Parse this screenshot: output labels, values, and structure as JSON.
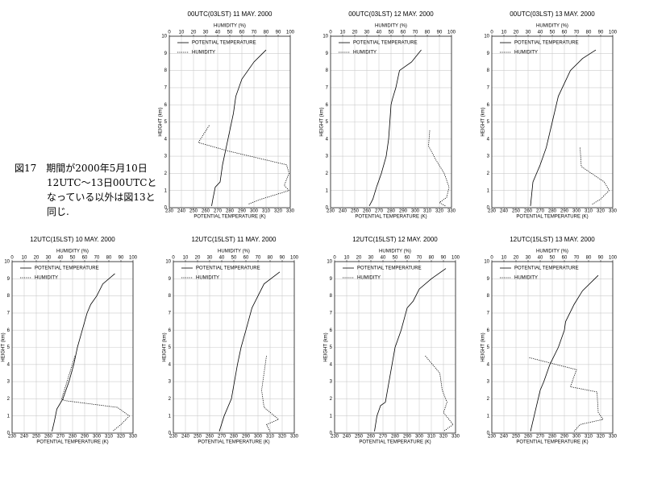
{
  "caption": [
    "図17　期間が2000年5月10日",
    "12UTC～13日00UTCと",
    "なっている以外は図13と",
    "同じ."
  ],
  "chart_data": [
    {
      "type": "line",
      "title": "00UTC(03LST) 11 MAY. 2000",
      "x_label": "POTENTIAL TEMPERATURE (K)",
      "x2_label": "HUMIDITY (%)",
      "y_label": "HEIGHT (km)",
      "xlim": [
        230,
        330
      ],
      "xticks": [
        230,
        240,
        250,
        260,
        270,
        280,
        290,
        300,
        310,
        320,
        330
      ],
      "x2lim": [
        0,
        100
      ],
      "x2ticks": [
        0,
        10,
        20,
        30,
        40,
        50,
        60,
        70,
        80,
        90,
        100
      ],
      "ylim": [
        0,
        10
      ],
      "yticks": [
        0,
        1,
        2,
        3,
        4,
        5,
        6,
        7,
        8,
        9,
        10
      ],
      "grid": true,
      "series": [
        {
          "name": "POTENTIAL TEMPERATURE",
          "color": "#000000",
          "dashed": false,
          "x": [
            265,
            266,
            268,
            272,
            274,
            277,
            280,
            283,
            285,
            290,
            300,
            310
          ],
          "y": [
            0.1,
            0.5,
            1.2,
            1.5,
            2.5,
            3.5,
            4.5,
            5.5,
            6.5,
            7.5,
            8.5,
            9.2
          ]
        },
        {
          "name": "HUMIDITY",
          "color": "#000000",
          "dashed": true,
          "axis": "x2",
          "x": [
            33,
            24,
            49,
            97,
            99,
            95,
            99,
            76,
            65
          ],
          "y": [
            4.8,
            3.8,
            3.3,
            2.5,
            2.0,
            1.3,
            1.0,
            0.5,
            0.2
          ]
        }
      ]
    },
    {
      "type": "line",
      "title": "00UTC(03LST) 12 MAY. 2000",
      "x_label": "POTENTIAL TEMPERATURE (K)",
      "x2_label": "HUMIDITY (%)",
      "y_label": "HEIGHT (km)",
      "xlim": [
        230,
        330
      ],
      "xticks": [
        230,
        240,
        250,
        260,
        270,
        280,
        290,
        300,
        310,
        320,
        330
      ],
      "x2lim": [
        0,
        100
      ],
      "x2ticks": [
        0,
        10,
        20,
        30,
        40,
        50,
        60,
        70,
        80,
        90,
        100
      ],
      "ylim": [
        0,
        10
      ],
      "yticks": [
        0,
        1,
        2,
        3,
        4,
        5,
        6,
        7,
        8,
        9,
        10
      ],
      "grid": true,
      "series": [
        {
          "name": "POTENTIAL TEMPERATURE",
          "color": "#000000",
          "dashed": false,
          "x": [
            262,
            265,
            268,
            272,
            276,
            278,
            279,
            280,
            281,
            284,
            287,
            297,
            305
          ],
          "y": [
            0.1,
            0.5,
            1.2,
            2,
            3,
            4,
            5,
            6,
            6.3,
            7,
            8,
            8.5,
            9.2
          ]
        },
        {
          "name": "HUMIDITY",
          "color": "#000000",
          "dashed": true,
          "axis": "x2",
          "x": [
            82,
            81,
            87,
            94,
            98,
            96,
            90,
            95
          ],
          "y": [
            4.5,
            3.6,
            2.8,
            2,
            1.2,
            0.6,
            0.3,
            0.1
          ]
        }
      ]
    },
    {
      "type": "line",
      "title": "00UTC(03LST) 13 MAY. 2000",
      "x_label": "POTENTIAL TEMPERATURE (K)",
      "x2_label": "HUMIDITY (%)",
      "y_label": "HEIGHT (km)",
      "xlim": [
        230,
        330
      ],
      "xticks": [
        230,
        240,
        250,
        260,
        270,
        280,
        290,
        300,
        310,
        320,
        330
      ],
      "x2lim": [
        0,
        100
      ],
      "x2ticks": [
        0,
        10,
        20,
        30,
        40,
        50,
        60,
        70,
        80,
        90,
        100
      ],
      "ylim": [
        0,
        10
      ],
      "yticks": [
        0,
        1,
        2,
        3,
        4,
        5,
        6,
        7,
        8,
        9,
        10
      ],
      "grid": true,
      "series": [
        {
          "name": "POTENTIAL TEMPERATURE",
          "color": "#000000",
          "dashed": false,
          "x": [
            262,
            264,
            270,
            275,
            280,
            285,
            295,
            305,
            316
          ],
          "y": [
            0.1,
            1.5,
            2.5,
            3.5,
            5,
            6.5,
            8,
            8.7,
            9.2
          ]
        },
        {
          "name": "HUMIDITY",
          "color": "#000000",
          "dashed": true,
          "axis": "x2",
          "x": [
            73,
            74,
            93,
            97,
            90,
            83
          ],
          "y": [
            3.5,
            2.4,
            1.5,
            1.0,
            0.5,
            0.2
          ]
        }
      ]
    },
    {
      "type": "line",
      "title": "12UTC(15LST) 10 MAY. 2000",
      "x_label": "POTENTIAL TEMPERATURE (K)",
      "x2_label": "HUMIDITY (%)",
      "y_label": "HEIGHT (km)",
      "xlim": [
        230,
        330
      ],
      "xticks": [
        230,
        240,
        250,
        260,
        270,
        280,
        290,
        300,
        310,
        320,
        330
      ],
      "x2lim": [
        0,
        100
      ],
      "x2ticks": [
        0,
        10,
        20,
        30,
        40,
        50,
        60,
        70,
        80,
        90,
        100
      ],
      "ylim": [
        0,
        10
      ],
      "yticks": [
        0,
        1,
        2,
        3,
        4,
        5,
        6,
        7,
        8,
        9,
        10
      ],
      "grid": true,
      "series": [
        {
          "name": "POTENTIAL TEMPERATURE",
          "color": "#000000",
          "dashed": false,
          "x": [
            263,
            265,
            267,
            272,
            277,
            281,
            284,
            288,
            292,
            295,
            300,
            305,
            315
          ],
          "y": [
            0.1,
            0.7,
            1.4,
            2,
            3,
            4,
            5,
            6,
            7,
            7.5,
            8,
            8.7,
            9.3
          ]
        },
        {
          "name": "HUMIDITY",
          "color": "#000000",
          "dashed": true,
          "axis": "x2",
          "x": [
            52,
            41,
            43,
            87,
            97,
            90,
            83
          ],
          "y": [
            4.5,
            2,
            1.9,
            1.5,
            1,
            0.5,
            0.1
          ]
        }
      ]
    },
    {
      "type": "line",
      "title": "12UTC(15LST) 11 MAY. 2000",
      "x_label": "POTENTIAL TEMPERATURE (K)",
      "x2_label": "HUMIDITY (%)",
      "y_label": "HEIGHT (km)",
      "xlim": [
        230,
        330
      ],
      "xticks": [
        230,
        240,
        250,
        260,
        270,
        280,
        290,
        300,
        310,
        320,
        330
      ],
      "x2lim": [
        0,
        100
      ],
      "x2ticks": [
        0,
        10,
        20,
        30,
        40,
        50,
        60,
        70,
        80,
        90,
        100
      ],
      "ylim": [
        0,
        10
      ],
      "yticks": [
        0,
        1,
        2,
        3,
        4,
        5,
        6,
        7,
        8,
        9,
        10
      ],
      "grid": true,
      "series": [
        {
          "name": "POTENTIAL TEMPERATURE",
          "color": "#000000",
          "dashed": false,
          "x": [
            268,
            272,
            278,
            283,
            286,
            290,
            295,
            300,
            305,
            318
          ],
          "y": [
            0.1,
            1,
            2,
            4,
            5,
            6,
            7.3,
            8,
            8.7,
            9.4
          ]
        },
        {
          "name": "HUMIDITY",
          "color": "#000000",
          "dashed": true,
          "axis": "x2",
          "x": [
            77,
            73,
            75,
            87,
            77,
            80
          ],
          "y": [
            4.5,
            2.5,
            1.5,
            0.8,
            0.5,
            0.1
          ]
        }
      ]
    },
    {
      "type": "line",
      "title": "12UTC(15LST) 12 MAY. 2000",
      "x_label": "POTENTIAL TEMPERATURE (K)",
      "x2_label": "HUMIDITY (%)",
      "y_label": "HEIGHT (km)",
      "xlim": [
        230,
        330
      ],
      "xticks": [
        230,
        240,
        250,
        260,
        270,
        280,
        290,
        300,
        310,
        320,
        330
      ],
      "x2lim": [
        0,
        100
      ],
      "x2ticks": [
        0,
        10,
        20,
        30,
        40,
        50,
        60,
        70,
        80,
        90,
        100
      ],
      "ylim": [
        0,
        10
      ],
      "yticks": [
        0,
        1,
        2,
        3,
        4,
        5,
        6,
        7,
        8,
        9,
        10
      ],
      "grid": true,
      "series": [
        {
          "name": "POTENTIAL TEMPERATURE",
          "color": "#000000",
          "dashed": false,
          "x": [
            263,
            265,
            268,
            272,
            275,
            280,
            285,
            290,
            295,
            300,
            310,
            322
          ],
          "y": [
            0.1,
            1,
            1.6,
            1.8,
            3,
            5,
            6,
            7.3,
            7.7,
            8.4,
            9,
            9.6
          ]
        },
        {
          "name": "HUMIDITY",
          "color": "#000000",
          "dashed": true,
          "axis": "x2",
          "x": [
            75,
            87,
            89,
            93,
            90,
            98,
            90
          ],
          "y": [
            4.5,
            3.5,
            2.5,
            1.8,
            1.2,
            0.5,
            0.1
          ]
        }
      ]
    },
    {
      "type": "line",
      "title": "12UTC(15LST) 13 MAY. 2000",
      "x_label": "POTENTIAL TEMPERATURE (K)",
      "x2_label": "HUMIDITY (%)",
      "y_label": "HEIGHT (km)",
      "xlim": [
        230,
        330
      ],
      "xticks": [
        230,
        240,
        250,
        260,
        270,
        280,
        290,
        300,
        310,
        320,
        330
      ],
      "x2lim": [
        0,
        100
      ],
      "x2ticks": [
        0,
        10,
        20,
        30,
        40,
        50,
        60,
        70,
        80,
        90,
        100
      ],
      "ylim": [
        0,
        10
      ],
      "yticks": [
        0,
        1,
        2,
        3,
        4,
        5,
        6,
        7,
        8,
        9,
        10
      ],
      "grid": true,
      "series": [
        {
          "name": "POTENTIAL TEMPERATURE",
          "color": "#000000",
          "dashed": false,
          "x": [
            262,
            265,
            270,
            273,
            278,
            285,
            290,
            291,
            298,
            305,
            318
          ],
          "y": [
            0.1,
            1,
            2.5,
            3,
            4,
            5,
            6,
            6.5,
            7.5,
            8.3,
            9.2
          ]
        },
        {
          "name": "HUMIDITY",
          "color": "#000000",
          "dashed": true,
          "axis": "x2",
          "x": [
            31,
            70,
            65,
            87,
            88,
            92,
            73,
            68
          ],
          "y": [
            4.4,
            3.7,
            2.7,
            2.4,
            1.2,
            0.8,
            0.5,
            0.1
          ]
        }
      ]
    }
  ]
}
